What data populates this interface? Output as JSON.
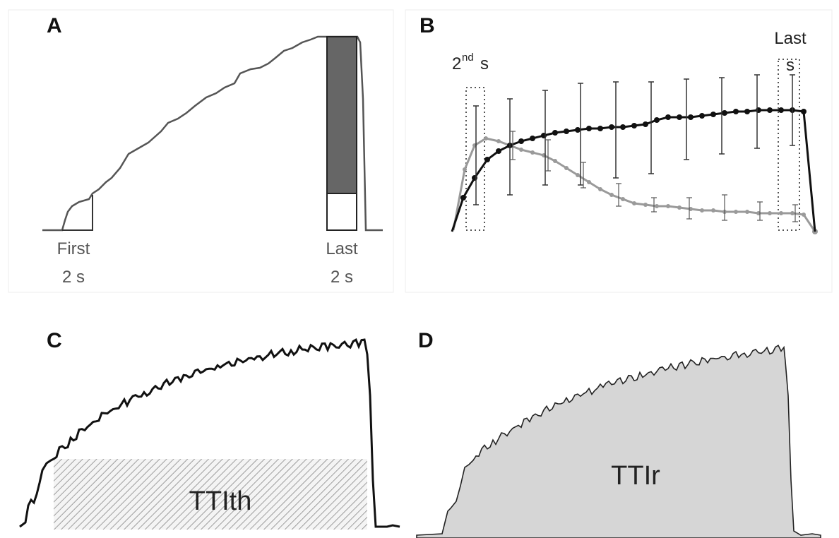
{
  "panels": {
    "a": {
      "label": "A",
      "first_caption": "First",
      "last_caption": "Last",
      "first_duration": "2 s",
      "last_duration": "2 s"
    },
    "b": {
      "label": "B",
      "second_prefix": "2",
      "second_superscript": "nd",
      "second_suffix": "s",
      "last_line1": "Last",
      "last_line2": "s"
    },
    "c": {
      "label": "C",
      "area_label": "TTIth"
    },
    "d": {
      "label": "D",
      "area_label": "TTIr"
    }
  },
  "colors": {
    "trace": "#111111",
    "trace_gray": "#8a8a8a",
    "bar_fill": "#666666",
    "area_fill": "#d6d6d6",
    "hatch": "#999999",
    "frame": "#e6e6e6"
  }
}
